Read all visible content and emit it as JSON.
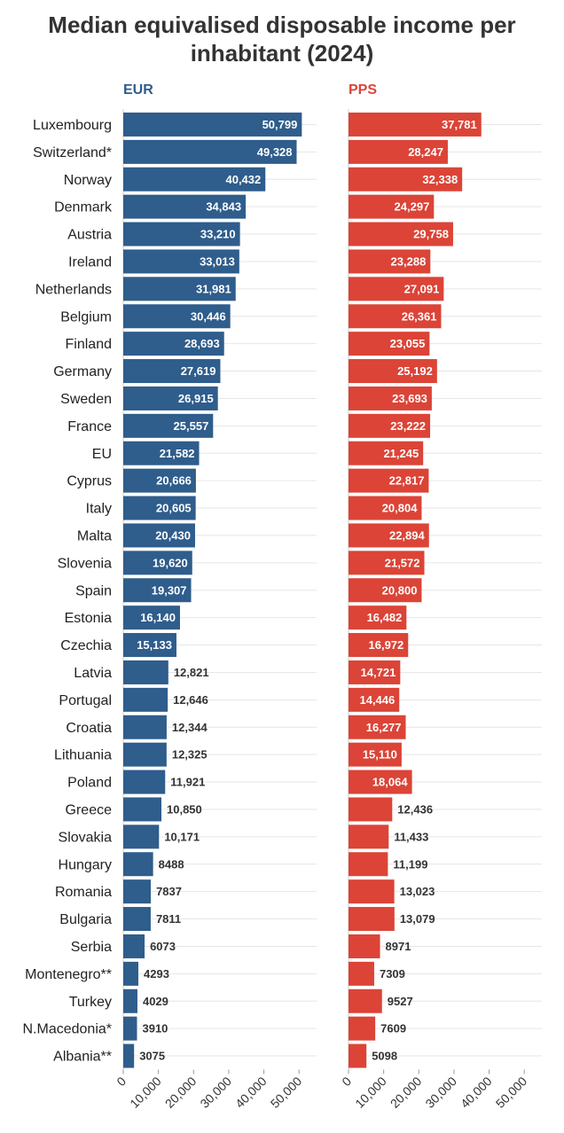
{
  "chart_data": {
    "type": "bar",
    "orientation": "horizontal",
    "title": "Median equivalised disposable income per inhabitant (2024)",
    "categories": [
      "Luxembourg",
      "Switzerland*",
      "Norway",
      "Denmark",
      "Austria",
      "Ireland",
      "Netherlands",
      "Belgium",
      "Finland",
      "Germany",
      "Sweden",
      "France",
      "EU",
      "Cyprus",
      "Italy",
      "Malta",
      "Slovenia",
      "Spain",
      "Estonia",
      "Czechia",
      "Latvia",
      "Portugal",
      "Croatia",
      "Lithuania",
      "Poland",
      "Greece",
      "Slovakia",
      "Hungary",
      "Romania",
      "Bulgaria",
      "Serbia",
      "Montenegro**",
      "Turkey",
      "N.Macedonia*",
      "Albania**"
    ],
    "series": [
      {
        "name": "EUR",
        "color": "#2f5d8c",
        "values": [
          50799,
          49328,
          40432,
          34843,
          33210,
          33013,
          31981,
          30446,
          28693,
          27619,
          26915,
          25557,
          21582,
          20666,
          20605,
          20430,
          19620,
          19307,
          16140,
          15133,
          12821,
          12646,
          12344,
          12325,
          11921,
          10850,
          10171,
          8488,
          7837,
          7811,
          6073,
          4293,
          4029,
          3910,
          3075
        ],
        "labels": [
          "50,799",
          "49,328",
          "40,432",
          "34,843",
          "33,210",
          "33,013",
          "31,981",
          "30,446",
          "28,693",
          "27,619",
          "26,915",
          "25,557",
          "21,582",
          "20,666",
          "20,605",
          "20,430",
          "19,620",
          "19,307",
          "16,140",
          "15,133",
          "12,821",
          "12,646",
          "12,344",
          "12,325",
          "11,921",
          "10,850",
          "10,171",
          "8488",
          "7837",
          "7811",
          "6073",
          "4293",
          "4029",
          "3910",
          "3075"
        ]
      },
      {
        "name": "PPS",
        "color": "#db4437",
        "values": [
          37781,
          28247,
          32338,
          24297,
          29758,
          23288,
          27091,
          26361,
          23055,
          25192,
          23693,
          23222,
          21245,
          22817,
          20804,
          22894,
          21572,
          20800,
          16482,
          16972,
          14721,
          14446,
          16277,
          15110,
          18064,
          12436,
          11433,
          11199,
          13023,
          13079,
          8971,
          7309,
          9527,
          7609,
          5098
        ],
        "labels": [
          "37,781",
          "28,247",
          "32,338",
          "24,297",
          "29,758",
          "23,288",
          "27,091",
          "26,361",
          "23,055",
          "25,192",
          "23,693",
          "23,222",
          "21,245",
          "22,817",
          "20,804",
          "22,894",
          "21,572",
          "20,800",
          "16,482",
          "16,972",
          "14,721",
          "14,446",
          "16,277",
          "15,110",
          "18,064",
          "12,436",
          "11,433",
          "11,199",
          "13,023",
          "13,079",
          "8971",
          "7309",
          "9527",
          "7609",
          "5098"
        ]
      }
    ],
    "xlim": [
      0,
      55000
    ],
    "x_ticks": [
      0,
      10000,
      20000,
      30000,
      40000,
      50000
    ],
    "x_tick_labels": [
      "0",
      "10,000",
      "20,000",
      "30,000",
      "40,000",
      "50,000"
    ],
    "inside_label_threshold": 14000,
    "grid": true,
    "gridline_color": "#e6e6e6"
  }
}
